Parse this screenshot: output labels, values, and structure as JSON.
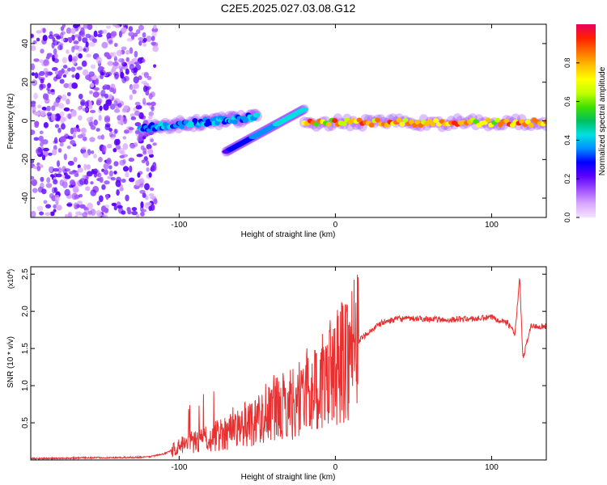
{
  "title": "C2E5.2025.027.03.08.G12",
  "colors": {
    "snr_line": "#e83030",
    "scatter_bg": "#7a00ff",
    "colormap": [
      "#f4e4ff",
      "#d9a8ff",
      "#a050ff",
      "#5a00ff",
      "#0000ff",
      "#0090ff",
      "#00e0e0",
      "#00c060",
      "#40e000",
      "#c0ff00",
      "#ffff00",
      "#ffc000",
      "#ff7000",
      "#ff2000",
      "#e80060"
    ]
  },
  "chart_data": [
    {
      "type": "heatmap",
      "title": "C2E5.2025.027.03.08.G12",
      "xlabel": "Height of straight line (km)",
      "ylabel": "Frequency (Hz)",
      "xlim": [
        -195,
        135
      ],
      "ylim": [
        -50,
        50
      ],
      "x_ticks": [
        -100,
        0,
        100
      ],
      "y_ticks": [
        -40,
        -20,
        0,
        20,
        40
      ],
      "grid": false,
      "colorbar": {
        "label": "Normalized spectral amplitude",
        "range": [
          0,
          1
        ],
        "ticks": [
          "0.0",
          "0.2",
          "0.4",
          "0.6",
          "0.8"
        ]
      },
      "features": [
        {
          "kind": "noise",
          "x_range": [
            -195,
            -115
          ],
          "y_range": [
            -50,
            50
          ],
          "amplitude": 0.2
        },
        {
          "kind": "trace",
          "x_range": [
            -125,
            -50
          ],
          "y_start": -4,
          "y_end": 2,
          "amplitude": 0.45
        },
        {
          "kind": "trace",
          "x_range": [
            -70,
            -20
          ],
          "y_start": -16,
          "y_end": 6,
          "amplitude": 0.4
        },
        {
          "kind": "trace",
          "x_range": [
            -20,
            135
          ],
          "y_start": -1,
          "y_end": -1,
          "amplitude": 0.95
        }
      ]
    },
    {
      "type": "line",
      "title": "",
      "xlabel": "Height of straight line (km)",
      "ylabel": "SNR (10 * v/v)",
      "y_multiplier": "(x10",
      "y_multiplier_exp": "4",
      "y_multiplier_close": ")",
      "xlim": [
        -195,
        135
      ],
      "ylim": [
        0,
        2.6
      ],
      "x_ticks": [
        -100,
        0,
        100
      ],
      "y_ticks": [
        0.5,
        1.0,
        1.5,
        2.0,
        2.5
      ],
      "grid": false,
      "series": [
        {
          "x": [
            -195,
            -180,
            -160,
            -140,
            -120,
            -110,
            -100,
            -90,
            -80,
            -70,
            -60,
            -50,
            -40,
            -35,
            -30,
            -25,
            -20,
            -15,
            -10,
            -5,
            0,
            10,
            20,
            30,
            40,
            50,
            60,
            70,
            80,
            90,
            100,
            110,
            115,
            118,
            120,
            125,
            135
          ],
          "values": [
            0.02,
            0.02,
            0.03,
            0.03,
            0.04,
            0.08,
            0.18,
            0.25,
            0.3,
            0.38,
            0.45,
            0.55,
            0.65,
            0.7,
            0.75,
            0.8,
            0.9,
            0.95,
            1.0,
            1.1,
            1.25,
            1.5,
            1.7,
            1.85,
            1.9,
            1.9,
            1.9,
            1.88,
            1.9,
            1.9,
            1.92,
            1.85,
            1.7,
            2.45,
            1.35,
            1.8,
            1.8
          ]
        }
      ]
    }
  ]
}
